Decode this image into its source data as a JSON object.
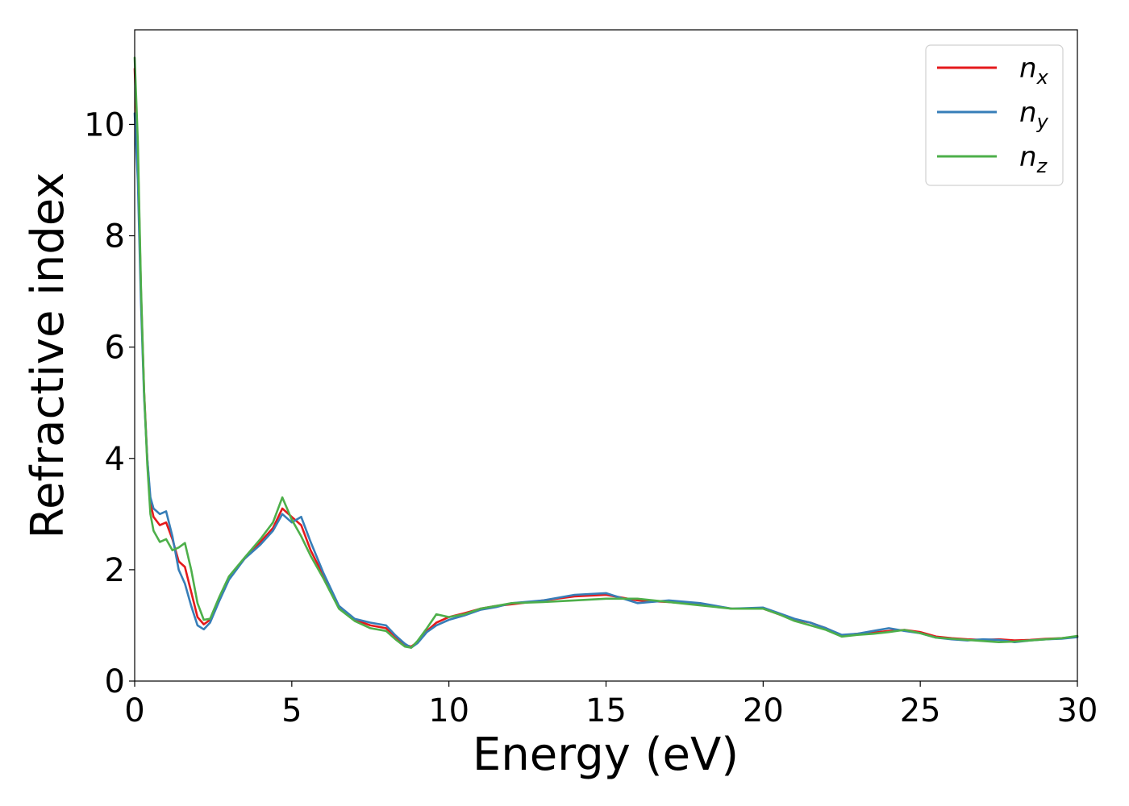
{
  "chart_data": {
    "type": "line",
    "xlabel": "Energy (eV)",
    "ylabel": "Refractive index",
    "xlim": [
      0,
      30
    ],
    "ylim": [
      0,
      11.7
    ],
    "xticks": [
      0,
      5,
      10,
      15,
      20,
      25,
      30
    ],
    "yticks": [
      0,
      2,
      4,
      6,
      8,
      10
    ],
    "grid": false,
    "legend_position": "top-right",
    "series": [
      {
        "name": "n",
        "subscript": "x",
        "color": "#e41a1c",
        "x": [
          0,
          0.1,
          0.2,
          0.3,
          0.4,
          0.5,
          0.6,
          0.8,
          1.0,
          1.2,
          1.4,
          1.6,
          1.8,
          2.0,
          2.2,
          2.4,
          2.7,
          3.0,
          3.5,
          4.0,
          4.4,
          4.7,
          5.0,
          5.3,
          5.6,
          6.0,
          6.5,
          7.0,
          7.5,
          8.0,
          8.3,
          8.6,
          8.8,
          9.0,
          9.3,
          9.6,
          10.0,
          10.5,
          11.0,
          11.5,
          12.0,
          13.0,
          14.0,
          15.0,
          16.0,
          17.0,
          18.0,
          19.0,
          20.0,
          20.5,
          21.0,
          21.5,
          22.0,
          22.5,
          23.0,
          23.5,
          24.0,
          24.5,
          25.0,
          25.5,
          26.0,
          26.5,
          27.0,
          27.5,
          28.0,
          28.5,
          29.0,
          29.5,
          30.0
        ],
        "y": [
          11.0,
          9.5,
          7.0,
          5.2,
          4.0,
          3.2,
          2.95,
          2.8,
          2.85,
          2.55,
          2.15,
          2.05,
          1.6,
          1.15,
          1.02,
          1.1,
          1.5,
          1.85,
          2.2,
          2.5,
          2.75,
          3.1,
          2.95,
          2.8,
          2.35,
          1.9,
          1.35,
          1.1,
          1.0,
          0.95,
          0.8,
          0.65,
          0.62,
          0.7,
          0.9,
          1.05,
          1.15,
          1.22,
          1.3,
          1.35,
          1.38,
          1.45,
          1.52,
          1.55,
          1.45,
          1.42,
          1.38,
          1.3,
          1.3,
          1.2,
          1.1,
          1.05,
          0.95,
          0.82,
          0.85,
          0.87,
          0.9,
          0.92,
          0.88,
          0.8,
          0.77,
          0.75,
          0.74,
          0.75,
          0.73,
          0.74,
          0.76,
          0.77,
          0.8
        ]
      },
      {
        "name": "n",
        "subscript": "y",
        "color": "#377eb8",
        "x": [
          0,
          0.1,
          0.2,
          0.3,
          0.4,
          0.5,
          0.6,
          0.8,
          1.0,
          1.2,
          1.4,
          1.6,
          1.8,
          2.0,
          2.2,
          2.4,
          2.7,
          3.0,
          3.5,
          4.0,
          4.4,
          4.7,
          5.0,
          5.3,
          5.6,
          6.0,
          6.5,
          7.0,
          7.5,
          8.0,
          8.3,
          8.6,
          8.8,
          9.0,
          9.3,
          9.6,
          10.0,
          10.5,
          11.0,
          11.5,
          12.0,
          13.0,
          14.0,
          15.0,
          16.0,
          17.0,
          18.0,
          19.0,
          20.0,
          20.5,
          21.0,
          21.5,
          22.0,
          22.5,
          23.0,
          23.5,
          24.0,
          24.5,
          25.0,
          25.5,
          26.0,
          26.5,
          27.0,
          27.5,
          28.0,
          28.5,
          29.0,
          29.5,
          30.0
        ],
        "y": [
          10.2,
          9.0,
          6.8,
          5.1,
          4.0,
          3.3,
          3.1,
          3.0,
          3.05,
          2.6,
          2.0,
          1.75,
          1.35,
          1.0,
          0.93,
          1.05,
          1.45,
          1.82,
          2.2,
          2.45,
          2.7,
          3.0,
          2.85,
          2.95,
          2.5,
          1.95,
          1.35,
          1.12,
          1.05,
          1.0,
          0.82,
          0.67,
          0.6,
          0.68,
          0.88,
          1.0,
          1.1,
          1.18,
          1.28,
          1.33,
          1.4,
          1.45,
          1.55,
          1.58,
          1.4,
          1.45,
          1.4,
          1.3,
          1.32,
          1.22,
          1.12,
          1.05,
          0.95,
          0.83,
          0.85,
          0.9,
          0.95,
          0.9,
          0.86,
          0.78,
          0.75,
          0.73,
          0.75,
          0.74,
          0.7,
          0.73,
          0.75,
          0.76,
          0.79
        ]
      },
      {
        "name": "n",
        "subscript": "z",
        "color": "#4daf4a",
        "x": [
          0,
          0.1,
          0.2,
          0.3,
          0.4,
          0.5,
          0.6,
          0.8,
          1.0,
          1.2,
          1.4,
          1.6,
          1.8,
          2.0,
          2.2,
          2.4,
          2.7,
          3.0,
          3.5,
          4.0,
          4.4,
          4.7,
          5.0,
          5.3,
          5.6,
          6.0,
          6.5,
          7.0,
          7.5,
          8.0,
          8.3,
          8.6,
          8.8,
          9.0,
          9.3,
          9.6,
          10.0,
          10.5,
          11.0,
          11.5,
          12.0,
          13.0,
          14.0,
          15.0,
          16.0,
          17.0,
          18.0,
          19.0,
          20.0,
          20.5,
          21.0,
          21.5,
          22.0,
          22.5,
          23.0,
          23.5,
          24.0,
          24.5,
          25.0,
          25.5,
          26.0,
          26.5,
          27.0,
          27.5,
          28.0,
          28.5,
          29.0,
          29.5,
          30.0
        ],
        "y": [
          11.2,
          9.7,
          7.1,
          5.2,
          3.9,
          3.0,
          2.7,
          2.5,
          2.55,
          2.35,
          2.4,
          2.48,
          2.0,
          1.4,
          1.1,
          1.12,
          1.52,
          1.88,
          2.22,
          2.55,
          2.85,
          3.3,
          2.9,
          2.6,
          2.25,
          1.85,
          1.3,
          1.08,
          0.95,
          0.9,
          0.75,
          0.62,
          0.6,
          0.72,
          0.95,
          1.2,
          1.15,
          1.2,
          1.3,
          1.35,
          1.4,
          1.42,
          1.45,
          1.48,
          1.48,
          1.42,
          1.36,
          1.3,
          1.3,
          1.2,
          1.08,
          1.0,
          0.92,
          0.8,
          0.83,
          0.85,
          0.88,
          0.92,
          0.86,
          0.78,
          0.76,
          0.74,
          0.72,
          0.7,
          0.71,
          0.73,
          0.75,
          0.77,
          0.81
        ]
      }
    ]
  }
}
